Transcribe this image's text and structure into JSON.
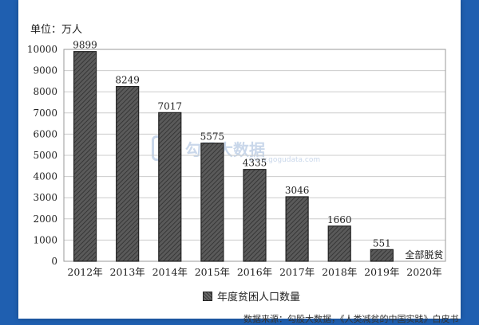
{
  "unit_label": "单位：万人",
  "watermark": {
    "logo": "G",
    "text": "勾股大数据",
    "sub": "www.gogudata.com"
  },
  "source_text": "数据来源：勾股大数据，《人类减贫的中国实践》白皮书",
  "colors": {
    "bar": "#4a4a4a",
    "grid": "#cccccc",
    "page": "#1f5fb0"
  },
  "chart_data": {
    "type": "bar",
    "title": "",
    "xlabel": "",
    "ylabel": "单位：万人",
    "categories": [
      "2012年",
      "2013年",
      "2014年",
      "2015年",
      "2016年",
      "2017年",
      "2018年",
      "2019年",
      "2020年"
    ],
    "series": [
      {
        "name": "年度贫困人口数量",
        "values": [
          9899,
          8249,
          7017,
          5575,
          4335,
          3046,
          1660,
          551,
          0
        ]
      }
    ],
    "data_labels": [
      "9899",
      "8249",
      "7017",
      "5575",
      "4335",
      "3046",
      "1660",
      "551",
      "全部脱贫"
    ],
    "yticks": [
      0,
      1000,
      2000,
      3000,
      4000,
      5000,
      6000,
      7000,
      8000,
      9000,
      10000
    ],
    "ylim": [
      0,
      10000
    ],
    "grid": true,
    "legend_position": "bottom"
  }
}
